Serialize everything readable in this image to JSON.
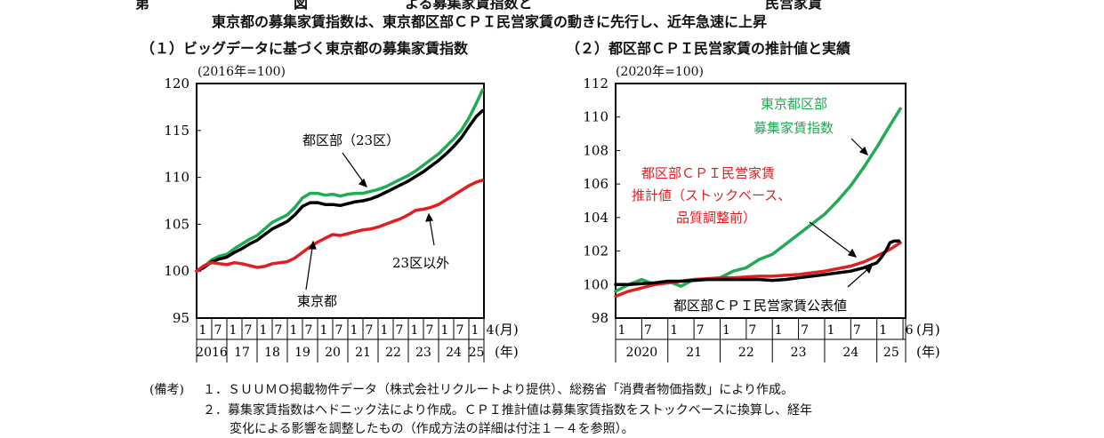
{
  "headline": {
    "prefix": "第",
    "title_fragment": "図",
    "title_rest": "よる募集家賃指数と",
    "title_end": "民営家賃"
  },
  "subtitle": "東京都の募集家賃指数は、東京都区部ＣＰＩ民営家賃の動きに先行し、近年急速に上昇",
  "panel1": {
    "title": "（１）ビッグデータに基づく東京都の募集家賃指数",
    "unit": "(2016年=100)"
  },
  "panel2": {
    "title": "（２）都区部ＣＰＩ民営家賃の推計値と実績",
    "unit": "(2020年=100)"
  },
  "notes": {
    "label": "(備考)",
    "lines": [
      "１．ＳＵＵＭＯ掲載物件データ（株式会社リクルートより提供）、総務省「消費者物価指数」により作成。",
      "２．募集家賃指数はヘドニック法により作成。ＣＰＩ推計値は募集家賃指数をストックベースに換算し、経年",
      "変化による影響を調整したもの（作成方法の詳細は付注１－４を参照）。"
    ]
  },
  "chart_data": [
    {
      "type": "line",
      "title": "（１）ビッグデータに基づく東京都の募集家賃指数",
      "ylabel": "(2016年=100)",
      "ylim": [
        95,
        120
      ],
      "yticks": [
        95,
        100,
        105,
        110,
        115,
        120
      ],
      "xlim": [
        2016.0,
        2025.5
      ],
      "month_labels": [
        "1",
        "7",
        "1",
        "7",
        "1",
        "7",
        "1",
        "7",
        "1",
        "7",
        "1",
        "7",
        "1",
        "7",
        "1",
        "7",
        "1",
        "7",
        "1",
        "4"
      ],
      "year_labels": [
        "2016",
        "17",
        "18",
        "19",
        "20",
        "21",
        "22",
        "23",
        "24",
        "25"
      ],
      "x_unit_month": "(月)",
      "x_unit_year": "(年)",
      "grid": false,
      "series": [
        {
          "name": "都区部（23区）",
          "color": "#22aa55",
          "x": [
            2016.0,
            2016.25,
            2016.5,
            2016.75,
            2017.0,
            2017.25,
            2017.5,
            2017.75,
            2018.0,
            2018.25,
            2018.5,
            2018.75,
            2019.0,
            2019.25,
            2019.5,
            2019.75,
            2020.0,
            2020.25,
            2020.5,
            2020.75,
            2021.0,
            2021.25,
            2021.5,
            2021.75,
            2022.0,
            2022.25,
            2022.5,
            2022.75,
            2023.0,
            2023.25,
            2023.5,
            2023.75,
            2024.0,
            2024.25,
            2024.5,
            2024.75,
            2025.0,
            2025.25,
            2025.45
          ],
          "y": [
            100.0,
            100.5,
            101.2,
            101.6,
            101.8,
            102.4,
            102.9,
            103.4,
            103.8,
            104.5,
            105.2,
            105.6,
            106.0,
            106.8,
            107.8,
            108.3,
            108.3,
            108.1,
            108.2,
            108.0,
            108.2,
            108.3,
            108.3,
            108.5,
            108.7,
            109.0,
            109.4,
            109.8,
            110.2,
            110.7,
            111.3,
            111.9,
            112.5,
            113.3,
            114.1,
            115.0,
            116.3,
            117.9,
            119.3
          ]
        },
        {
          "name": "東京都",
          "color": "#000000",
          "x": [
            2016.0,
            2016.25,
            2016.5,
            2016.75,
            2017.0,
            2017.25,
            2017.5,
            2017.75,
            2018.0,
            2018.25,
            2018.5,
            2018.75,
            2019.0,
            2019.25,
            2019.5,
            2019.75,
            2020.0,
            2020.25,
            2020.5,
            2020.75,
            2021.0,
            2021.25,
            2021.5,
            2021.75,
            2022.0,
            2022.25,
            2022.5,
            2022.75,
            2023.0,
            2023.25,
            2023.5,
            2023.75,
            2024.0,
            2024.25,
            2024.5,
            2024.75,
            2025.0,
            2025.25,
            2025.45
          ],
          "y": [
            100.0,
            100.4,
            101.0,
            101.3,
            101.5,
            102.0,
            102.4,
            102.9,
            103.3,
            103.9,
            104.5,
            104.9,
            105.3,
            106.0,
            106.9,
            107.3,
            107.3,
            107.1,
            107.1,
            107.0,
            107.2,
            107.4,
            107.5,
            107.7,
            108.0,
            108.4,
            108.8,
            109.2,
            109.6,
            110.1,
            110.6,
            111.2,
            111.8,
            112.5,
            113.3,
            114.2,
            115.4,
            116.5,
            117.1
          ]
        },
        {
          "name": "23区以外",
          "color": "#e02020",
          "x": [
            2016.0,
            2016.25,
            2016.5,
            2016.75,
            2017.0,
            2017.25,
            2017.5,
            2017.75,
            2018.0,
            2018.25,
            2018.5,
            2018.75,
            2019.0,
            2019.25,
            2019.5,
            2019.75,
            2020.0,
            2020.25,
            2020.5,
            2020.75,
            2021.0,
            2021.25,
            2021.5,
            2021.75,
            2022.0,
            2022.25,
            2022.5,
            2022.75,
            2023.0,
            2023.25,
            2023.5,
            2023.75,
            2024.0,
            2024.25,
            2024.5,
            2024.75,
            2025.0,
            2025.25,
            2025.45
          ],
          "y": [
            100.0,
            100.6,
            100.9,
            100.8,
            100.7,
            100.9,
            100.8,
            100.6,
            100.4,
            100.5,
            100.8,
            100.9,
            101.0,
            101.4,
            102.0,
            102.6,
            103.1,
            103.5,
            103.9,
            103.8,
            104.0,
            104.2,
            104.4,
            104.5,
            104.7,
            105.0,
            105.3,
            105.6,
            106.0,
            106.5,
            106.6,
            106.8,
            107.1,
            107.6,
            108.1,
            108.6,
            109.1,
            109.5,
            109.7
          ]
        }
      ],
      "annotations": [
        "都区部（23区）",
        "23区以外",
        "東京都"
      ]
    },
    {
      "type": "line",
      "title": "（２）都区部ＣＰＩ民営家賃の推計値と実績",
      "ylabel": "(2020年=100)",
      "ylim": [
        98,
        112
      ],
      "yticks": [
        98,
        100,
        102,
        104,
        106,
        108,
        110,
        112
      ],
      "xlim": [
        2020.0,
        2025.55
      ],
      "month_labels": [
        "1",
        "7",
        "1",
        "7",
        "1",
        "7",
        "1",
        "7",
        "1",
        "7",
        "1",
        "6"
      ],
      "year_labels": [
        "2020",
        "21",
        "22",
        "23",
        "24",
        "25"
      ],
      "x_unit_month": "(月)",
      "x_unit_year": "(年)",
      "grid": false,
      "series": [
        {
          "name": "東京都区部募集家賃指数",
          "color": "#22aa55",
          "x": [
            2020.0,
            2020.25,
            2020.5,
            2020.75,
            2021.0,
            2021.25,
            2021.5,
            2021.75,
            2022.0,
            2022.25,
            2022.5,
            2022.75,
            2023.0,
            2023.25,
            2023.5,
            2023.75,
            2024.0,
            2024.25,
            2024.5,
            2024.75,
            2025.0,
            2025.25,
            2025.45
          ],
          "y": [
            99.6,
            100.0,
            100.3,
            100.0,
            100.2,
            99.9,
            100.3,
            100.3,
            100.4,
            100.8,
            101.0,
            101.5,
            101.8,
            102.4,
            103.0,
            103.6,
            104.2,
            105.0,
            105.9,
            107.0,
            108.2,
            109.5,
            110.5
          ]
        },
        {
          "name": "都区部ＣＰＩ民営家賃推計値（ストックベース、品質調整前）",
          "color": "#e02020",
          "x": [
            2020.0,
            2020.25,
            2020.5,
            2020.75,
            2021.0,
            2021.25,
            2021.5,
            2021.75,
            2022.0,
            2022.25,
            2022.5,
            2022.75,
            2023.0,
            2023.25,
            2023.5,
            2023.75,
            2024.0,
            2024.25,
            2024.5,
            2024.75,
            2025.0,
            2025.25,
            2025.45
          ],
          "y": [
            99.3,
            99.6,
            99.8,
            100.0,
            100.1,
            100.2,
            100.3,
            100.35,
            100.4,
            100.4,
            100.45,
            100.5,
            100.5,
            100.55,
            100.6,
            100.7,
            100.8,
            100.95,
            101.1,
            101.35,
            101.7,
            102.1,
            102.5
          ]
        },
        {
          "name": "都区部ＣＰＩ民営家賃公表値",
          "color": "#000000",
          "x": [
            2020.0,
            2020.25,
            2020.5,
            2020.75,
            2021.0,
            2021.25,
            2021.5,
            2021.75,
            2022.0,
            2022.25,
            2022.5,
            2022.75,
            2023.0,
            2023.25,
            2023.5,
            2023.75,
            2024.0,
            2024.25,
            2024.5,
            2024.75,
            2025.0,
            2025.08,
            2025.17,
            2025.25,
            2025.33,
            2025.42
          ],
          "y": [
            100.0,
            100.0,
            100.05,
            100.1,
            100.2,
            100.2,
            100.25,
            100.3,
            100.3,
            100.3,
            100.3,
            100.3,
            100.25,
            100.3,
            100.4,
            100.5,
            100.6,
            100.7,
            100.8,
            101.0,
            101.3,
            101.6,
            102.0,
            102.5,
            102.6,
            102.6
          ]
        }
      ],
      "annotations": [
        "東京都区部",
        "募集家賃指数",
        "都区部ＣＰＩ民営家賃",
        "推計値（ストックベース、",
        "品質調整前）",
        "都区部ＣＰＩ民営家賃公表値"
      ]
    }
  ]
}
